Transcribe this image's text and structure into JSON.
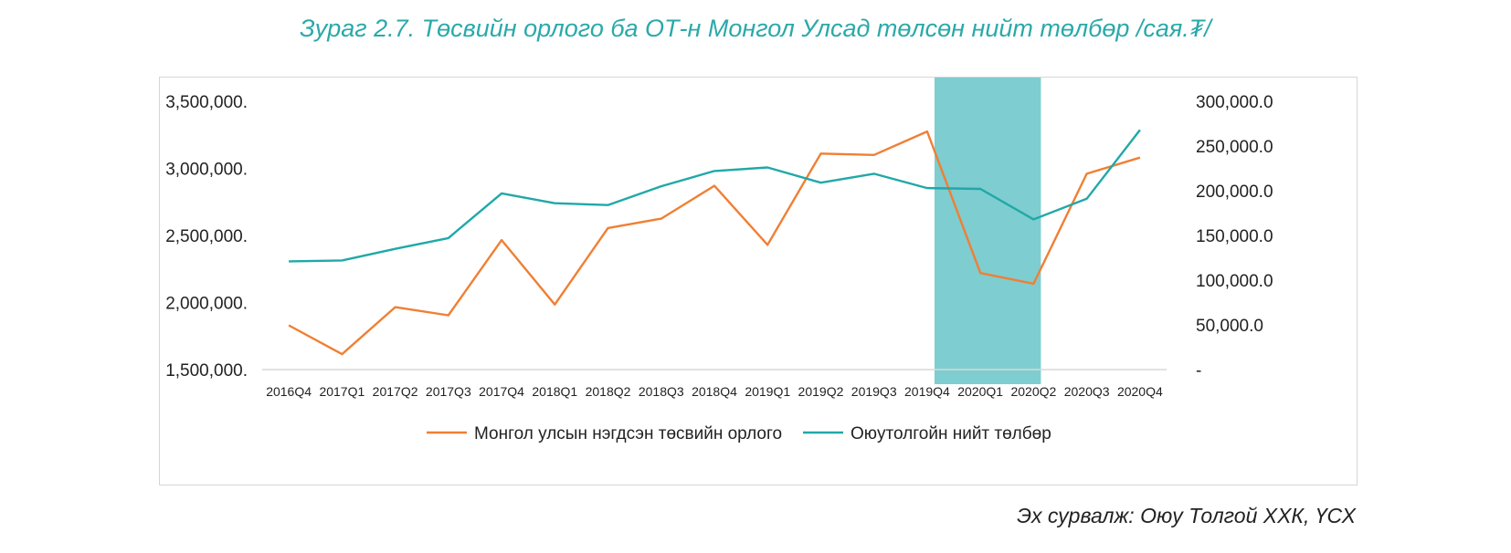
{
  "title": "Зураг 2.7. Төсвийн орлого ба ОТ-н Монгол Улсад төлсөн нийт төлбөр /сая.₮/",
  "source": "Эх сурвалж: Оюу Толгой ХХК, ҮСХ",
  "chart_data": {
    "type": "line",
    "categories": [
      "2016Q4",
      "2017Q1",
      "2017Q2",
      "2017Q3",
      "2017Q4",
      "2018Q1",
      "2018Q2",
      "2018Q3",
      "2018Q4",
      "2019Q1",
      "2019Q2",
      "2019Q3",
      "2019Q4",
      "2020Q1",
      "2020Q2",
      "2020Q3",
      "2020Q4"
    ],
    "y_left": {
      "ylim": [
        1500000,
        3500000
      ],
      "ticks": [
        1500000,
        2000000,
        2500000,
        3000000,
        3500000
      ],
      "tick_labels": [
        "1,500,000.",
        "2,000,000.",
        "2,500,000.",
        "3,000,000.",
        "3,500,000."
      ]
    },
    "y_right": {
      "ylim": [
        0,
        300000
      ],
      "ticks": [
        0,
        50000,
        100000,
        150000,
        200000,
        250000,
        300000
      ],
      "tick_labels": [
        "-",
        "50,000.0",
        "100,000.0",
        "150,000.0",
        "200,000.0",
        "250,000.0",
        "300,000.0"
      ]
    },
    "highlight": {
      "from": "2019Q4",
      "to": "2020Q2",
      "color": "#7ecdd0"
    },
    "series": [
      {
        "name": "Монгол улсын нэгдсэн төсвийн орлого",
        "axis": "left",
        "color": "#f07f33",
        "values": [
          1830000,
          1615000,
          1965000,
          1905000,
          2465000,
          1985000,
          2555000,
          2625000,
          2870000,
          2430000,
          3110000,
          3100000,
          3275000,
          2220000,
          2140000,
          2960000,
          3080000
        ]
      },
      {
        "name": "Оюутолгойн нийт төлбөр",
        "axis": "right",
        "color": "#21a8a8",
        "values": [
          121000,
          122000,
          135000,
          147000,
          197000,
          186000,
          184000,
          205000,
          222000,
          226000,
          209000,
          219000,
          203000,
          202000,
          168000,
          191000,
          268000
        ]
      }
    ],
    "grid": false,
    "legend": "bottom"
  }
}
